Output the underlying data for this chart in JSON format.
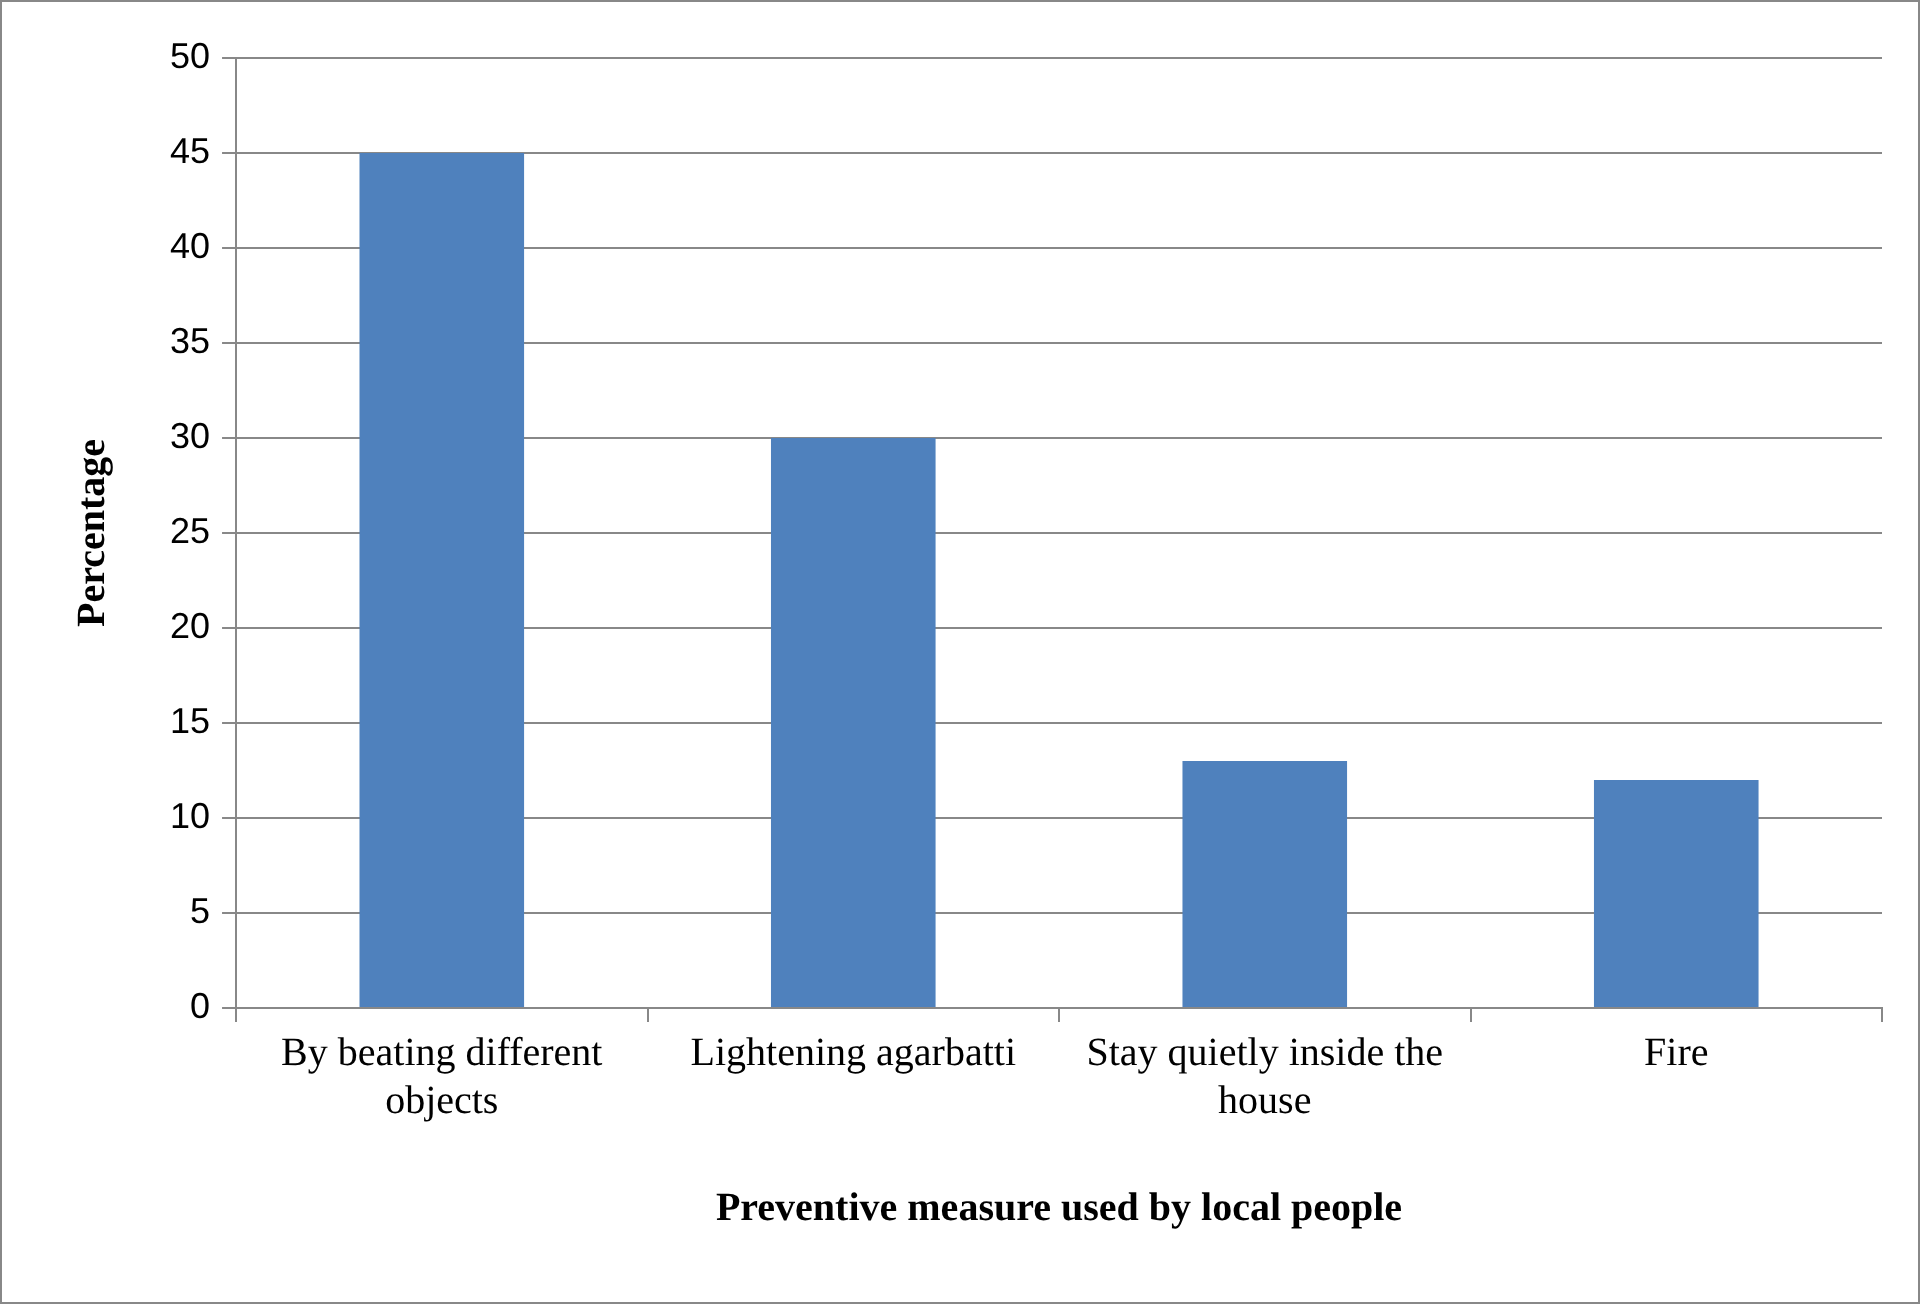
{
  "chart_data": {
    "type": "bar",
    "xlabel": "Preventive measure used by local people",
    "ylabel": "Percentage",
    "categories": [
      "By beating different objects",
      "Lightening agarbatti",
      "Stay quietly inside the house",
      "Fire"
    ],
    "values": [
      45,
      30,
      13,
      12
    ],
    "color": "#4f81bd",
    "ylim": [
      0,
      50
    ],
    "yticks": [
      0,
      5,
      10,
      15,
      20,
      25,
      30,
      35,
      40,
      45,
      50
    ],
    "grid": "y",
    "legend": false
  }
}
